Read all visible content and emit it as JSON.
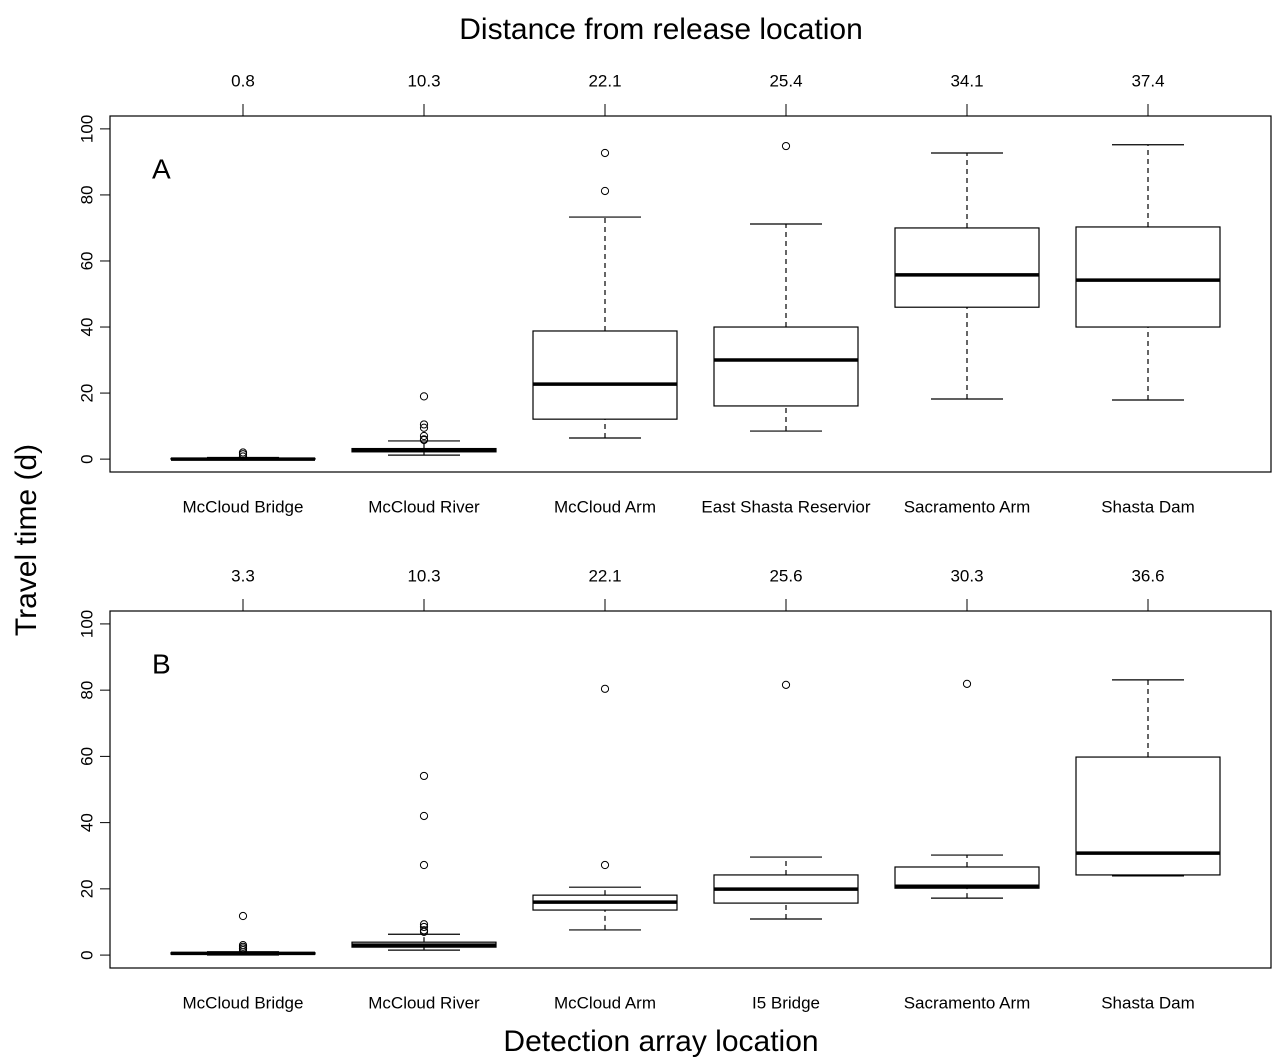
{
  "figure": {
    "title": "Distance from release location",
    "ylabel": "Travel time (d)",
    "xlabel": "Detection array location"
  },
  "chart_data": [
    {
      "type": "box",
      "panel_label": "A",
      "categories": [
        "McCloud Bridge",
        "McCloud River",
        "McCloud Arm",
        "East Shasta Reservior",
        "Sacramento Arm",
        "Shasta Dam"
      ],
      "distances": [
        0.8,
        10.3,
        22.1,
        25.4,
        34.1,
        37.4
      ],
      "min": [
        0,
        1.2,
        6.4,
        8.5,
        18.2,
        17.9
      ],
      "q1": [
        0,
        2.2,
        12.1,
        16.1,
        46,
        40
      ],
      "median": [
        0,
        2.7,
        22.7,
        30,
        55.8,
        54.2
      ],
      "q3": [
        0.2,
        3.2,
        38.8,
        40,
        70,
        70.3
      ],
      "max": [
        0.5,
        5.5,
        73.3,
        71.2,
        92.7,
        95.2
      ],
      "outliers": [
        [
          0.8,
          1.5,
          2
        ],
        [
          5.8,
          6,
          7,
          9.5,
          10.5,
          19
        ],
        [
          81.2,
          92.7
        ],
        [
          94.8
        ],
        [],
        []
      ],
      "ylim": [
        -3.9,
        103.9
      ],
      "yticks": [
        0,
        20,
        40,
        60,
        80,
        100
      ]
    },
    {
      "type": "box",
      "panel_label": "B",
      "categories": [
        "McCloud Bridge",
        "McCloud River",
        "McCloud Arm",
        "I5 Bridge",
        "Sacramento Arm",
        "Shasta Dam"
      ],
      "distances": [
        3.3,
        10.3,
        22.1,
        25.6,
        30.3,
        36.6
      ],
      "min": [
        0,
        1.5,
        7.6,
        10.9,
        17.2,
        23.9
      ],
      "q1": [
        0.3,
        2.4,
        13.6,
        15.7,
        20.2,
        24.2
      ],
      "median": [
        0.5,
        3,
        16,
        19.9,
        20.8,
        30.8
      ],
      "q3": [
        0.7,
        3.9,
        18.1,
        24.2,
        26.6,
        59.8
      ],
      "max": [
        1,
        6.3,
        20.5,
        29.6,
        30.2,
        83.1
      ],
      "outliers": [
        [
          1.5,
          2,
          2.5,
          3,
          11.8
        ],
        [
          7,
          7.5,
          8.5,
          9.3,
          27.2,
          42,
          54.1
        ],
        [
          27.2,
          80.4
        ],
        [
          81.6
        ],
        [
          81.9
        ],
        []
      ],
      "ylim": [
        -3.9,
        103.9
      ],
      "yticks": [
        0,
        20,
        40,
        60,
        80,
        100
      ]
    }
  ]
}
